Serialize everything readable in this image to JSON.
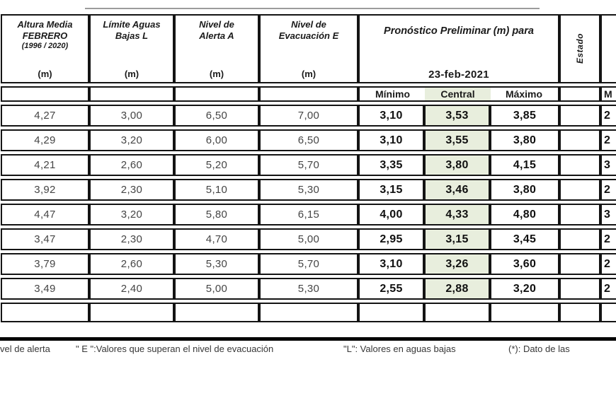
{
  "table": {
    "col_headers": [
      {
        "lines": [
          "Altura Media",
          "FEBRERO",
          "(1996 / 2020)"
        ],
        "unit": "(m)"
      },
      {
        "lines": [
          "Límite Aguas",
          "Bajas L"
        ],
        "unit": "(m)"
      },
      {
        "lines": [
          "Nivel de",
          "Alerta A"
        ],
        "unit": "(m)"
      },
      {
        "lines": [
          "Nivel de",
          "Evacuación E"
        ],
        "unit": "(m)"
      }
    ],
    "forecast": {
      "title": "Pronóstico Preliminar (m) para",
      "date": "23-feb-2021",
      "min_label": "Mínimo",
      "central_label": "Central",
      "max_label": "Máximo"
    },
    "estado_label": "Estado",
    "next_col": {
      "sub_label_partial": "M"
    },
    "rows": [
      [
        "4,27",
        "3,00",
        "6,50",
        "7,00",
        "3,10",
        "3,53",
        "3,85",
        "",
        "2"
      ],
      [
        "4,29",
        "3,20",
        "6,00",
        "6,50",
        "3,10",
        "3,55",
        "3,80",
        "",
        "2"
      ],
      [
        "4,21",
        "2,60",
        "5,20",
        "5,70",
        "3,35",
        "3,80",
        "4,15",
        "",
        "3"
      ],
      [
        "3,92",
        "2,30",
        "5,10",
        "5,30",
        "3,15",
        "3,46",
        "3,80",
        "",
        "2"
      ],
      [
        "4,47",
        "3,20",
        "5,80",
        "6,15",
        "4,00",
        "4,33",
        "4,80",
        "",
        "3"
      ],
      [
        "3,47",
        "2,30",
        "4,70",
        "5,00",
        "2,95",
        "3,15",
        "3,45",
        "",
        "2"
      ],
      [
        "3,79",
        "2,60",
        "5,30",
        "5,70",
        "3,10",
        "3,26",
        "3,60",
        "",
        "2"
      ],
      [
        "3,49",
        "2,40",
        "5,00",
        "5,30",
        "2,55",
        "2,88",
        "3,20",
        "",
        "2"
      ]
    ]
  },
  "footer": {
    "seg1": "vel de alerta",
    "seg2": "\" E \":Valores que superan el nivel de evacuación",
    "seg3": "\"L\": Valores en aguas bajas",
    "seg4": "(*): Dato de las"
  },
  "colors": {
    "central_highlight_bg": "#e8eedd",
    "table_border": "#141414",
    "data_text": "#454545",
    "forecast_text": "#101010",
    "footer_rule": "#000000",
    "top_partial_line": "#9c9c9c"
  }
}
